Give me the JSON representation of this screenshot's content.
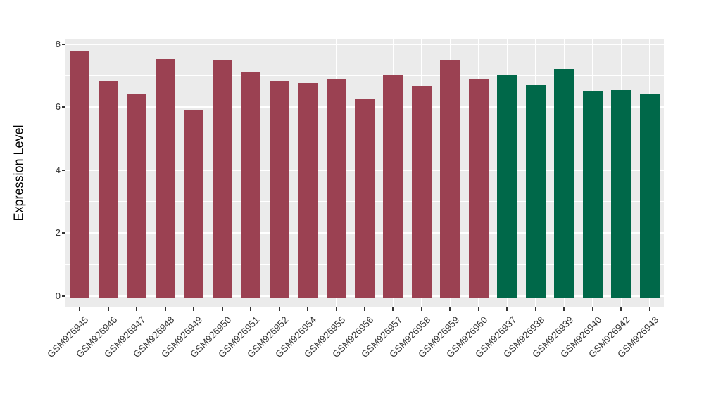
{
  "chart_data": {
    "type": "bar",
    "title": "",
    "xlabel": "",
    "ylabel": "Expression Level",
    "ylim": [
      0,
      8.17
    ],
    "yticks": [
      0,
      2,
      4,
      6,
      8
    ],
    "yticks_minor": [
      1,
      3,
      5,
      7
    ],
    "grid": true,
    "legend": false,
    "categories": [
      "GSM926945",
      "GSM926946",
      "GSM926947",
      "GSM926948",
      "GSM926949",
      "GSM926950",
      "GSM926951",
      "GSM926952",
      "GSM926954",
      "GSM926955",
      "GSM926956",
      "GSM926957",
      "GSM926958",
      "GSM926959",
      "GSM926960",
      "GSM926937",
      "GSM926938",
      "GSM926939",
      "GSM926940",
      "GSM926942",
      "GSM926943"
    ],
    "values": [
      7.76,
      6.84,
      6.4,
      7.53,
      5.9,
      7.5,
      7.1,
      6.83,
      6.77,
      6.9,
      6.26,
      7.01,
      6.68,
      7.48,
      6.89,
      7.01,
      6.7,
      7.2,
      6.49,
      6.53,
      6.43
    ],
    "bar_groups": [
      0,
      0,
      0,
      0,
      0,
      0,
      0,
      0,
      0,
      0,
      0,
      0,
      0,
      0,
      0,
      1,
      1,
      1,
      1,
      1,
      1
    ],
    "group_colors": [
      "#9B4152",
      "#006849"
    ],
    "panel_bg": "#EBEBEB",
    "grid_color": "#FFFFFF",
    "figure_bg": "#FFFFFF"
  }
}
